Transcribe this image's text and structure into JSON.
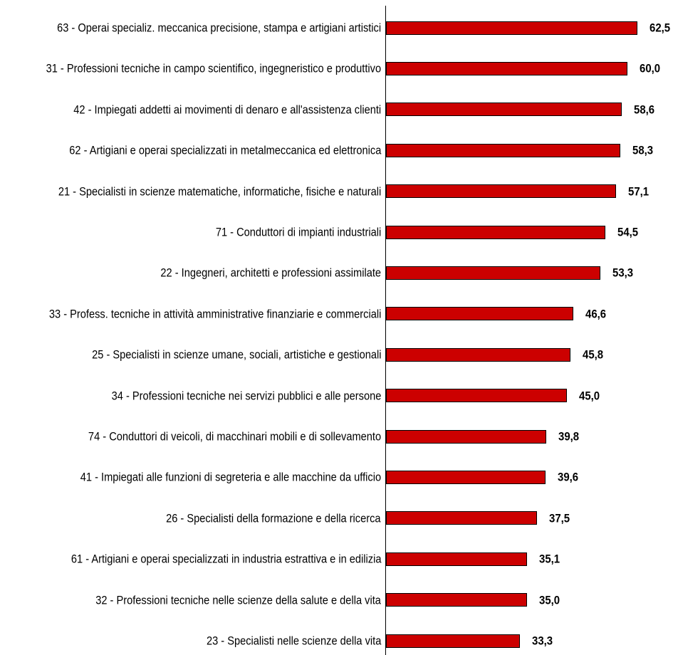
{
  "chart_data": {
    "type": "bar",
    "orientation": "horizontal",
    "categories": [
      "63 - Operai specializ. meccanica precisione, stampa e artigiani artistici",
      "31 - Professioni tecniche in campo scientifico, ingegneristico e produttivo",
      "42 - Impiegati addetti ai movimenti di denaro e all'assistenza clienti",
      "62 - Artigiani e operai specializzati in metalmeccanica ed elettronica",
      "21 - Specialisti in scienze matematiche, informatiche, fisiche e naturali",
      "71 - Conduttori di impianti industriali",
      "22 - Ingegneri, architetti e professioni assimilate",
      "33 - Profess. tecniche in attività amministrative finanziarie e commerciali",
      "25 - Specialisti in scienze umane, sociali, artistiche e gestionali",
      "34 - Professioni tecniche nei servizi pubblici e alle persone",
      "74 - Conduttori di veicoli, di macchinari mobili e di sollevamento",
      "41 - Impiegati alle funzioni di segreteria e alle macchine da ufficio",
      "26 - Specialisti della formazione e della ricerca",
      "61 - Artigiani e operai specializzati in industria estrattiva e in edilizia",
      "32 - Professioni tecniche nelle scienze della salute e della vita",
      "23 - Specialisti nelle scienze della vita"
    ],
    "values": [
      62.5,
      60.0,
      58.6,
      58.3,
      57.1,
      54.5,
      53.3,
      46.6,
      45.8,
      45.0,
      39.8,
      39.6,
      37.5,
      35.1,
      35.0,
      33.3
    ],
    "value_labels": [
      "62,5",
      "60,0",
      "58,6",
      "58,3",
      "57,1",
      "54,5",
      "53,3",
      "46,6",
      "45,8",
      "45,0",
      "39,8",
      "39,6",
      "37,5",
      "35,1",
      "35,0",
      "33,3"
    ],
    "bar_color": "#cc0000",
    "bar_border_color": "#000000",
    "title": "",
    "xlabel": "",
    "ylabel": "",
    "grid": false,
    "legend": "none"
  }
}
